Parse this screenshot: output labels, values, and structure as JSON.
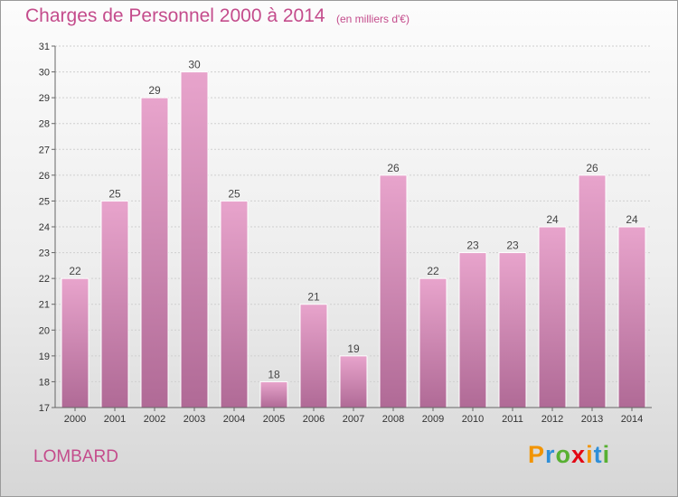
{
  "header": {
    "title": "Charges de Personnel 2000 à 2014",
    "subtitle": "(en milliers d'€)"
  },
  "footer": {
    "commune": "LOMBARD",
    "brand": "Proxiti",
    "brand_letter_colors": [
      "#f29400",
      "#2f8fd8",
      "#58b032",
      "#e30613",
      "#f29400",
      "#2f8fd8",
      "#58b032"
    ]
  },
  "colors": {
    "accent": "#c44c8c",
    "bar_top": "#e8a4cc",
    "bar_bottom": "#b06a96",
    "bar_edge": "#ffffff",
    "axis": "#666666",
    "grid": "#cfcfcf"
  },
  "chart_data": {
    "type": "bar",
    "title": "Charges de Personnel 2000 à 2014",
    "subtitle": "(en milliers d'€)",
    "categories": [
      "2000",
      "2001",
      "2002",
      "2003",
      "2004",
      "2005",
      "2006",
      "2007",
      "2008",
      "2009",
      "2010",
      "2011",
      "2012",
      "2013",
      "2014"
    ],
    "values": [
      22,
      25,
      29,
      30,
      25,
      18,
      21,
      19,
      26,
      22,
      23,
      23,
      24,
      26,
      24
    ],
    "ylim": [
      17,
      31
    ],
    "yticks": [
      17,
      18,
      19,
      20,
      21,
      22,
      23,
      24,
      25,
      26,
      27,
      28,
      29,
      30,
      31
    ],
    "grid": true,
    "data_labels": true,
    "legend": "none"
  }
}
